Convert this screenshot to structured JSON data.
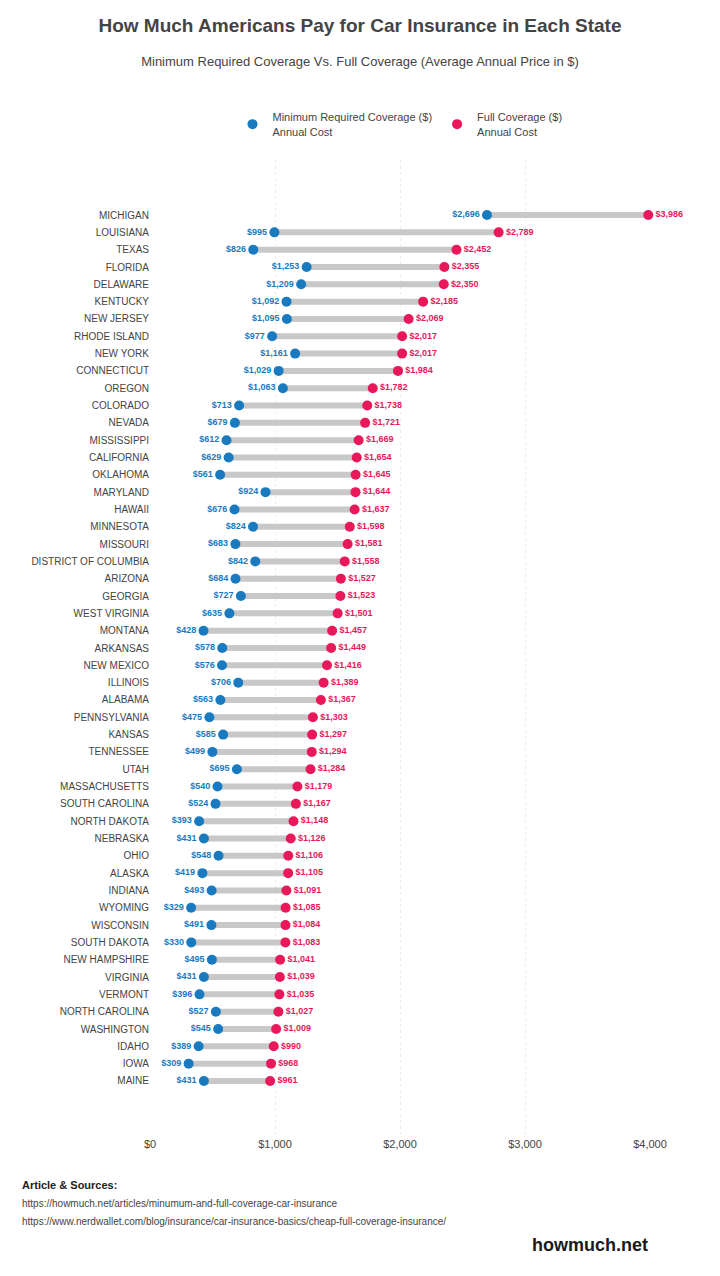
{
  "chart_data": {
    "type": "dumbbell",
    "title": "How Much Americans Pay for Car Insurance in Each State",
    "subtitle": "Minimum Required Coverage Vs. Full Coverage (Average Annual Price in $)",
    "orientation": "horizontal",
    "categories": [
      "MICHIGAN",
      "LOUISIANA",
      "TEXAS",
      "FLORIDA",
      "DELAWARE",
      "KENTUCKY",
      "NEW JERSEY",
      "RHODE ISLAND",
      "NEW YORK",
      "CONNECTICUT",
      "OREGON",
      "COLORADO",
      "NEVADA",
      "MISSISSIPPI",
      "CALIFORNIA",
      "OKLAHOMA",
      "MARYLAND",
      "HAWAII",
      "MINNESOTA",
      "MISSOURI",
      "DISTRICT OF COLUMBIA",
      "ARIZONA",
      "GEORGIA",
      "WEST VIRGINIA",
      "MONTANA",
      "ARKANSAS",
      "NEW MEXICO",
      "ILLINOIS",
      "ALABAMA",
      "PENNSYLVANIA",
      "KANSAS",
      "TENNESSEE",
      "UTAH",
      "MASSACHUSETTS",
      "SOUTH CAROLINA",
      "NORTH DAKOTA",
      "NEBRASKA",
      "OHIO",
      "ALASKA",
      "INDIANA",
      "WYOMING",
      "WISCONSIN",
      "SOUTH DAKOTA",
      "NEW HAMPSHIRE",
      "VIRGINIA",
      "VERMONT",
      "NORTH CAROLINA",
      "WASHINGTON",
      "IDAHO",
      "IOWA",
      "MAINE"
    ],
    "color": "#c8c8c8",
    "series": [
      {
        "name": "Minimum Required Coverage ($)\nAnnual Cost",
        "color": "#1a7abf",
        "values": [
          2696,
          995,
          826,
          1253,
          1209,
          1092,
          1095,
          977,
          1161,
          1029,
          1063,
          713,
          679,
          612,
          629,
          561,
          924,
          676,
          824,
          683,
          842,
          684,
          727,
          635,
          428,
          578,
          576,
          706,
          563,
          475,
          585,
          499,
          695,
          540,
          524,
          393,
          431,
          548,
          419,
          493,
          329,
          491,
          330,
          495,
          431,
          396,
          527,
          545,
          389,
          309,
          431
        ],
        "value_labels": [
          "$2,696",
          "$995",
          "$826",
          "$1,253",
          "$1,209",
          "$1,092",
          "$1,095",
          "$977",
          "$1,161",
          "$1,029",
          "$1,063",
          "$713",
          "$679",
          "$612",
          "$629",
          "$561",
          "$924",
          "$676",
          "$824",
          "$683",
          "$842",
          "$684",
          "$727",
          "$635",
          "$428",
          "$578",
          "$576",
          "$706",
          "$563",
          "$475",
          "$585",
          "$499",
          "$695",
          "$540",
          "$524",
          "$393",
          "$431",
          "$548",
          "$419",
          "$493",
          "$329",
          "$491",
          "$330",
          "$495",
          "$431",
          "$396",
          "$527",
          "$545",
          "$389",
          "$309",
          "$431"
        ]
      },
      {
        "name": "Full Coverage ($)\nAnnual Cost",
        "color": "#e8185a",
        "values": [
          3986,
          2789,
          2452,
          2355,
          2350,
          2185,
          2069,
          2017,
          2017,
          1984,
          1782,
          1738,
          1721,
          1669,
          1654,
          1645,
          1644,
          1637,
          1598,
          1581,
          1558,
          1527,
          1523,
          1501,
          1457,
          1449,
          1416,
          1389,
          1367,
          1303,
          1297,
          1294,
          1284,
          1179,
          1167,
          1148,
          1126,
          1106,
          1105,
          1091,
          1085,
          1084,
          1083,
          1041,
          1039,
          1035,
          1027,
          1009,
          990,
          968,
          961
        ],
        "value_labels": [
          "$3,986",
          "$2,789",
          "$2,452",
          "$2,355",
          "$2,350",
          "$2,185",
          "$2,069",
          "$2,017",
          "$2,017",
          "$1,984",
          "$1,782",
          "$1,738",
          "$1,721",
          "$1,669",
          "$1,654",
          "$1,645",
          "$1,644",
          "$1,637",
          "$1,598",
          "$1,581",
          "$1,558",
          "$1,527",
          "$1,523",
          "$1,501",
          "$1,457",
          "$1,449",
          "$1,416",
          "$1,389",
          "$1,367",
          "$1,303",
          "$1,297",
          "$1,294",
          "$1,284",
          "$1,179",
          "$1,167",
          "$1,148",
          "$1,126",
          "$1,106",
          "$1,105",
          "$1,091",
          "$1,085",
          "$1,084",
          "$1,083",
          "$1,041",
          "$1,039",
          "$1,035",
          "$1,027",
          "$1,009",
          "$990",
          "$968",
          "$961"
        ]
      }
    ],
    "xlim": [
      0,
      4000
    ],
    "xticks": [
      {
        "value": 0,
        "label": "$0"
      },
      {
        "value": 1000,
        "label": "$1,000"
      },
      {
        "value": 2000,
        "label": "$2,000"
      },
      {
        "value": 3000,
        "label": "$3,000"
      },
      {
        "value": 4000,
        "label": "$4,000"
      }
    ],
    "grid": true,
    "data_labels": true,
    "legend": "top",
    "marker": "circle",
    "annotations": [
      "Article & Sources:",
      "https://howmuch.net/articles/minumum-and-full-coverage-car-insurance",
      "https://www.nerdwallet.com/blog/insurance/car-insurance-basics/cheap-full-coverage-insurance/",
      "howmuch.net"
    ]
  }
}
